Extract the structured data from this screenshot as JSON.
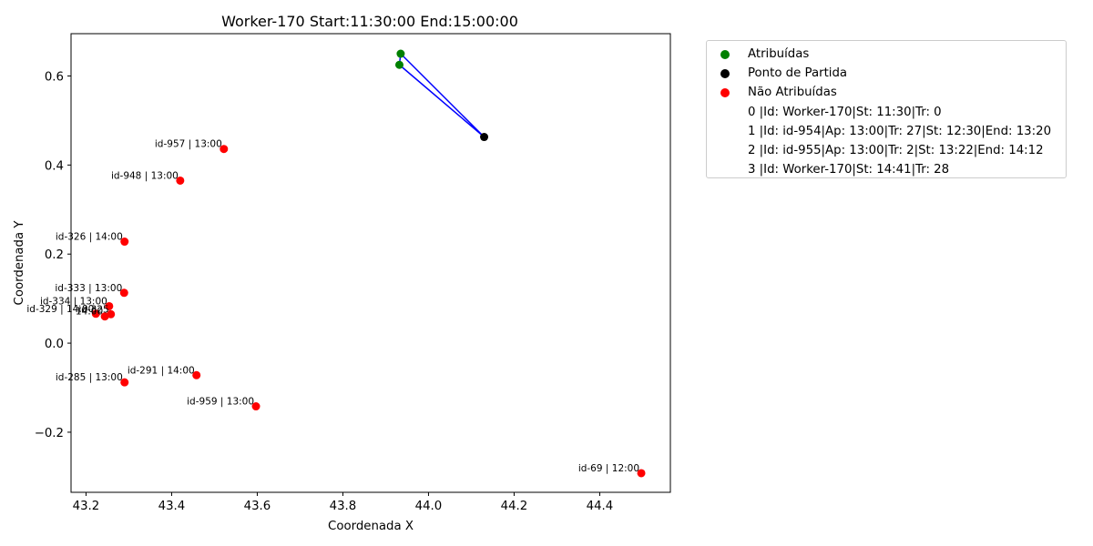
{
  "chart_data": {
    "type": "scatter",
    "title": "Worker-170 Start:11:30:00 End:15:00:00",
    "xlabel": "Coordenada X",
    "ylabel": "Coordenada Y",
    "xlim": [
      43.165,
      44.565
    ],
    "ylim": [
      -0.335,
      0.695
    ],
    "xticks": [
      43.2,
      43.4,
      43.6,
      43.8,
      44.0,
      44.2,
      44.4
    ],
    "xtick_labels": [
      "43.2",
      "43.4",
      "43.6",
      "43.8",
      "44.0",
      "44.2",
      "44.4"
    ],
    "yticks": [
      -0.2,
      0.0,
      0.2,
      0.4,
      0.6
    ],
    "ytick_labels": [
      "−0.2",
      "0.0",
      "0.2",
      "0.4",
      "0.6"
    ],
    "grid": false,
    "legend_placement": "outside right, top",
    "colors": {
      "assigned": "#008000",
      "start": "#000000",
      "unassigned": "#ff0000",
      "route": "#0000ff"
    },
    "route": {
      "name": "route",
      "x": [
        44.13,
        43.935,
        43.932,
        44.13
      ],
      "y": [
        0.463,
        0.65,
        0.625,
        0.463
      ]
    },
    "series": [
      {
        "name": "Atribuídas",
        "color": "#008000",
        "points": [
          {
            "x": 43.935,
            "y": 0.65
          },
          {
            "x": 43.932,
            "y": 0.625
          }
        ]
      },
      {
        "name": "Ponto de Partida",
        "color": "#000000",
        "points": [
          {
            "x": 44.13,
            "y": 0.463
          }
        ]
      },
      {
        "name": "Não Atribuídas",
        "color": "#ff0000",
        "points": [
          {
            "x": 43.522,
            "y": 0.436,
            "label": "id-957 | 13:00"
          },
          {
            "x": 43.42,
            "y": 0.365,
            "label": "id-948 | 13:00"
          },
          {
            "x": 43.29,
            "y": 0.228,
            "label": "id-326 | 14:00"
          },
          {
            "x": 43.289,
            "y": 0.113,
            "label": "id-333 | 13:00"
          },
          {
            "x": 43.254,
            "y": 0.083,
            "label": "id-334 | 13:00"
          },
          {
            "x": 43.258,
            "y": 0.065,
            "label": "id-325"
          },
          {
            "x": 43.244,
            "y": 0.06,
            "label": "14:00"
          },
          {
            "x": 43.223,
            "y": 0.066,
            "label": "id-329 | 14:00"
          },
          {
            "x": 43.458,
            "y": -0.072,
            "label": "id-291 | 14:00"
          },
          {
            "x": 43.29,
            "y": -0.088,
            "label": "id-285 | 13:00"
          },
          {
            "x": 43.597,
            "y": -0.142,
            "label": "id-959 | 13:00"
          },
          {
            "x": 44.497,
            "y": -0.292,
            "label": "id-69 | 12:00"
          }
        ]
      }
    ]
  },
  "legend": {
    "items": [
      {
        "label": "Atribuídas",
        "color": "#008000"
      },
      {
        "label": "Ponto de Partida",
        "color": "#000000"
      },
      {
        "label": "Não Atribuídas",
        "color": "#ff0000"
      },
      {
        "label": "0 |Id: Worker-170|St: 11:30|Tr: 0"
      },
      {
        "label": "1 |Id: id-954|Ap: 13:00|Tr: 27|St: 12:30|End: 13:20"
      },
      {
        "label": "2 |Id: id-955|Ap: 13:00|Tr: 2|St: 13:22|End: 14:12"
      },
      {
        "label": "3 |Id: Worker-170|St: 14:41|Tr: 28"
      }
    ]
  }
}
